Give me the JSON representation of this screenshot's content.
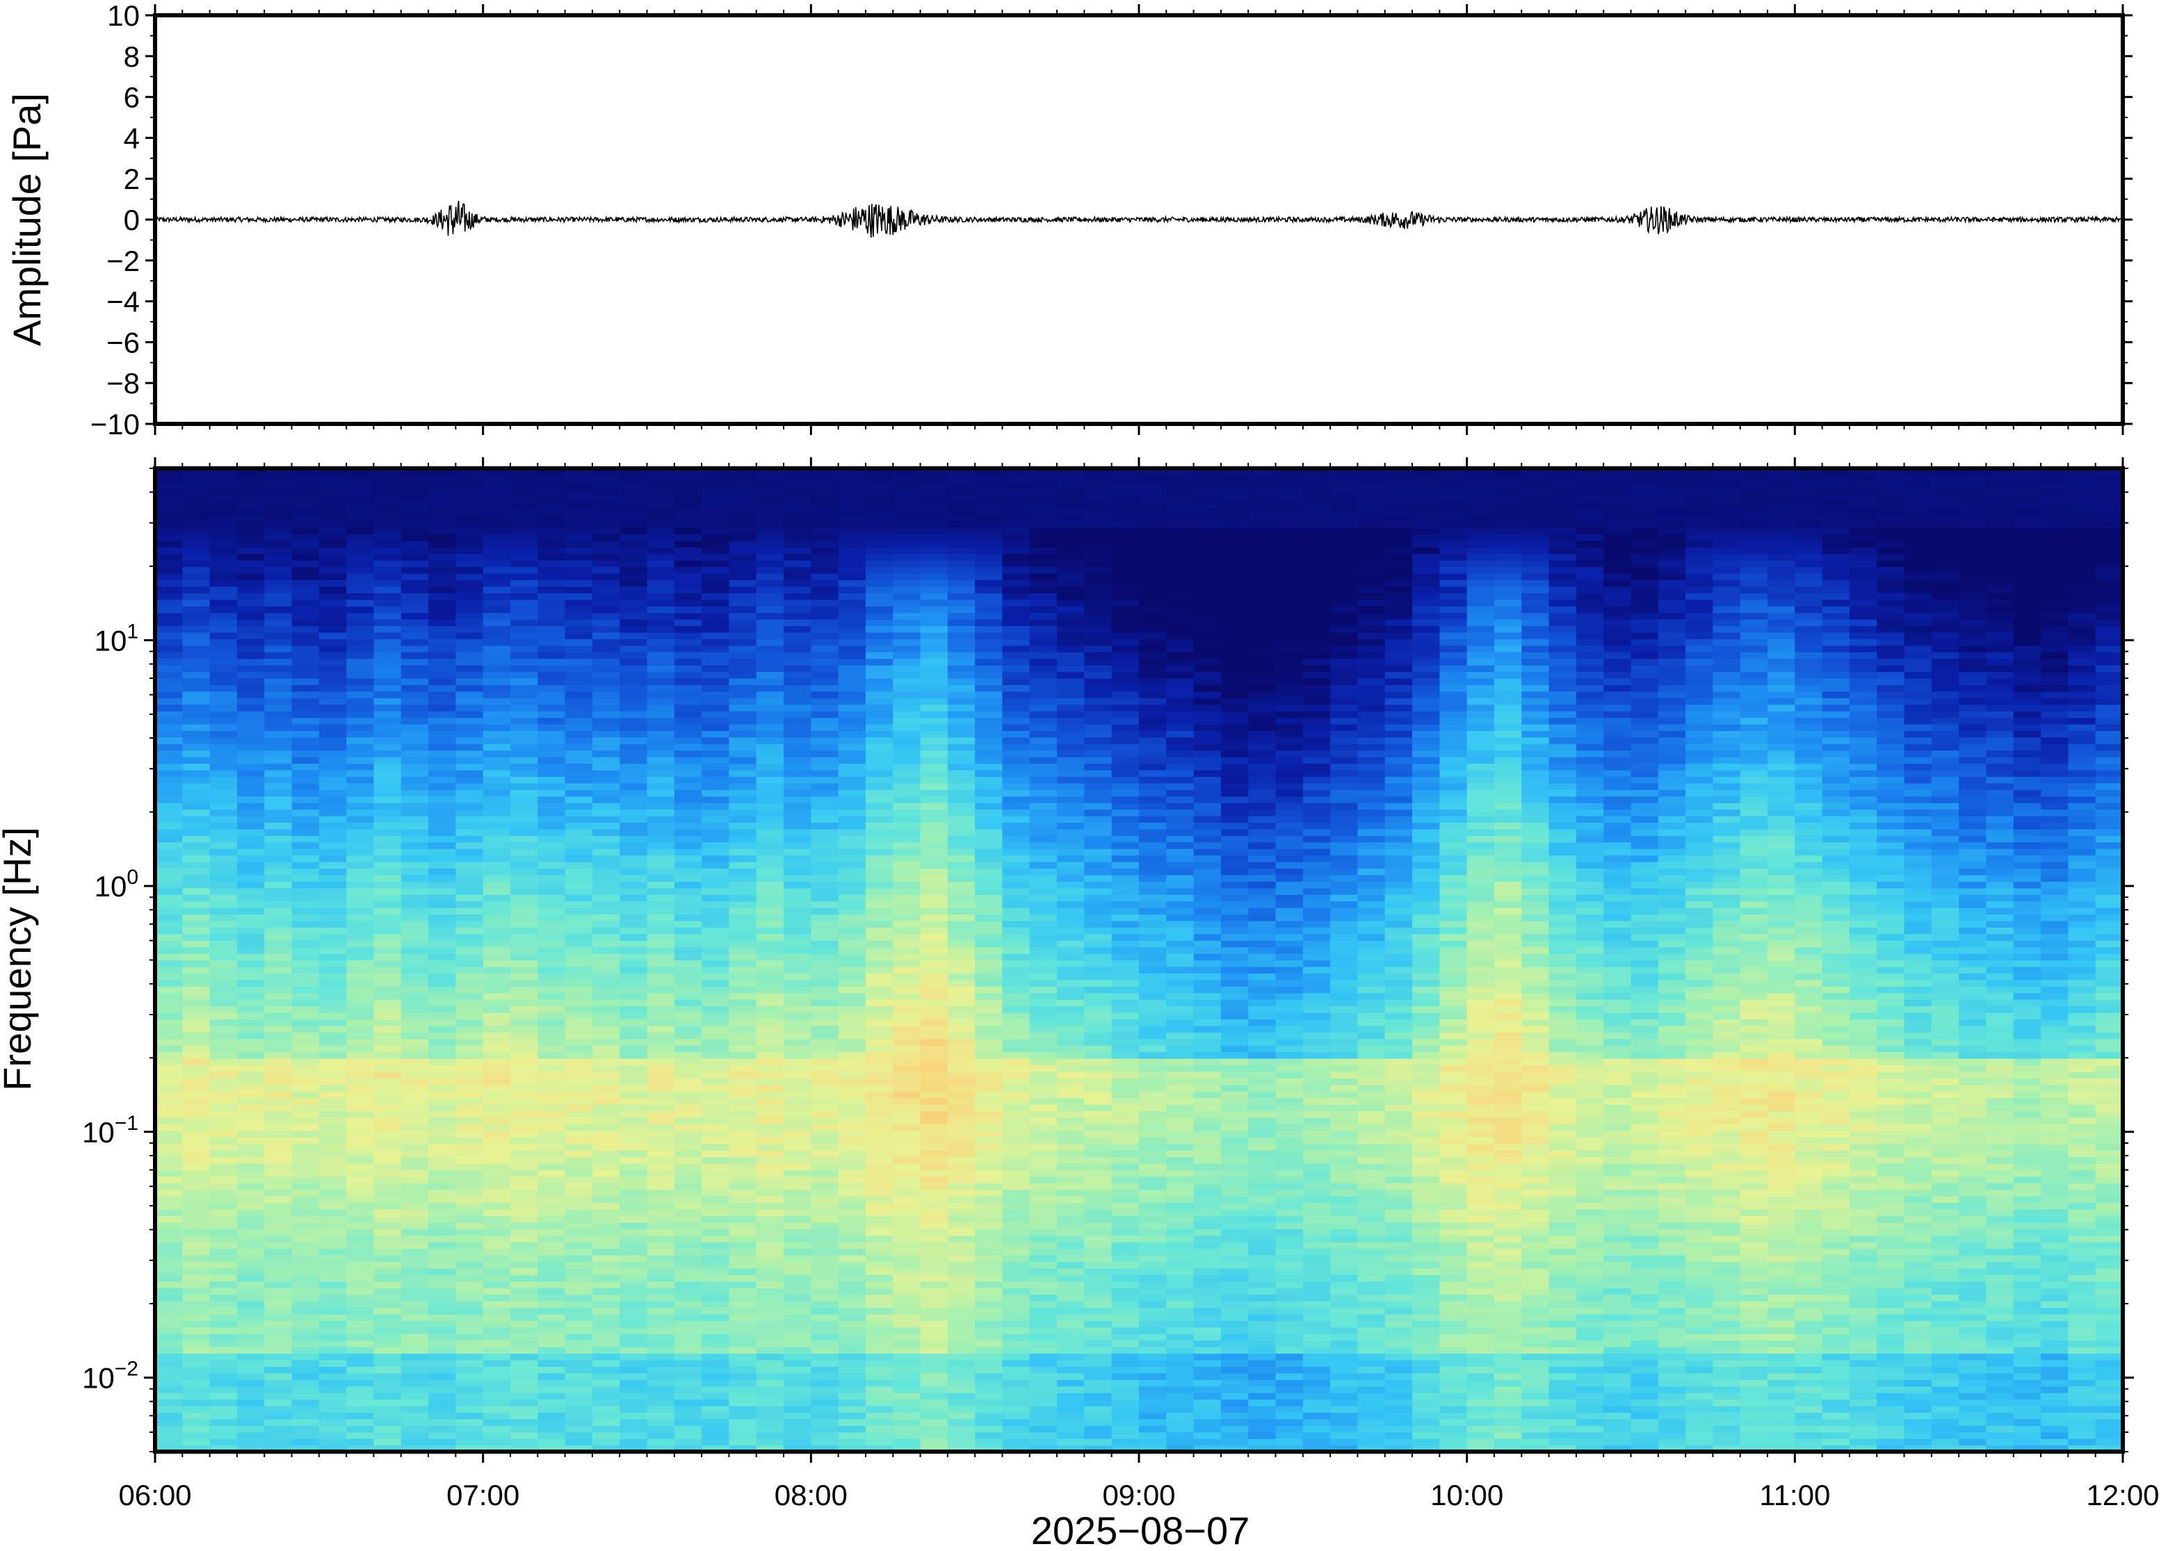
{
  "chart_data": [
    {
      "type": "line",
      "ylabel": "Amplitude [Pa]",
      "ylim": [
        -10,
        10
      ],
      "y_ticks": [
        "10",
        "8",
        "6",
        "4",
        "2",
        "0",
        "−2",
        "−4",
        "−6",
        "−8",
        "−10"
      ],
      "y_tick_values": [
        10,
        8,
        6,
        4,
        2,
        0,
        -2,
        -4,
        -6,
        -8,
        -10
      ],
      "xlim": [
        "06:00",
        "12:00"
      ],
      "series": [
        {
          "color": "#000000",
          "values_description_free": true,
          "bursts": [
            {
              "time": "06:55",
              "peak": 0.9,
              "width_min": 6
            },
            {
              "time": "08:10",
              "peak": 0.5,
              "width_min": 10
            },
            {
              "time": "08:15",
              "peak": 0.45,
              "width_min": 12
            },
            {
              "time": "09:48",
              "peak": 0.35,
              "width_min": 10
            },
            {
              "time": "10:35",
              "peak": 0.6,
              "width_min": 8
            }
          ],
          "baseline_noise": 0.12
        }
      ],
      "grid": false
    },
    {
      "type": "heatmap",
      "ylabel": "Frequency [Hz]",
      "xlabel": "2025−08−07",
      "y_scale": "log",
      "ylim": [
        0.005,
        50
      ],
      "y_ticks": [
        {
          "value": 0.01,
          "base": "10",
          "exp": "−2"
        },
        {
          "value": 0.1,
          "base": "10",
          "exp": "−1"
        },
        {
          "value": 1,
          "base": "10",
          "exp": "0"
        },
        {
          "value": 10,
          "base": "10",
          "exp": "1"
        }
      ],
      "x_ticks": [
        "06:00",
        "07:00",
        "08:00",
        "09:00",
        "10:00",
        "11:00",
        "12:00"
      ],
      "colormap": [
        "#080a6e",
        "#0a1fa8",
        "#1253d8",
        "#1e8ef2",
        "#36c6f4",
        "#66e6d8",
        "#a8f0b0",
        "#e8f293",
        "#f9d67e",
        "#f6a25a"
      ],
      "time_columns": 72,
      "column_activity": [
        0.55,
        0.6,
        0.55,
        0.5,
        0.55,
        0.5,
        0.5,
        0.55,
        0.6,
        0.55,
        0.5,
        0.55,
        0.6,
        0.6,
        0.55,
        0.55,
        0.55,
        0.5,
        0.55,
        0.5,
        0.5,
        0.55,
        0.6,
        0.55,
        0.55,
        0.6,
        0.7,
        0.75,
        0.8,
        0.7,
        0.6,
        0.5,
        0.45,
        0.42,
        0.4,
        0.35,
        0.3,
        0.3,
        0.25,
        0.2,
        0.2,
        0.22,
        0.25,
        0.3,
        0.35,
        0.4,
        0.5,
        0.6,
        0.7,
        0.75,
        0.65,
        0.55,
        0.5,
        0.45,
        0.45,
        0.5,
        0.55,
        0.6,
        0.65,
        0.65,
        0.6,
        0.55,
        0.5,
        0.45,
        0.4,
        0.4,
        0.35,
        0.35,
        0.3,
        0.3,
        0.35,
        0.4
      ],
      "grid": false
    }
  ]
}
